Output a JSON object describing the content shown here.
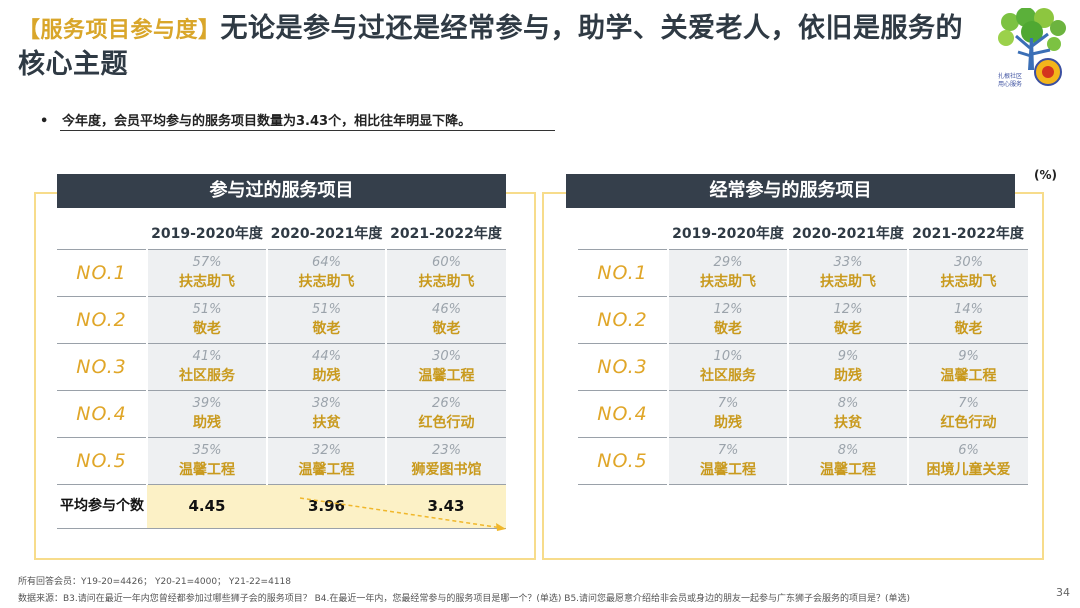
{
  "title": {
    "prefix": "【服务项目参与度】",
    "main": "无论是参与过还是经常参与，助学、关爱老人，依旧是服务的核心主题"
  },
  "bullet": "今年度，会员平均参与的服务项目数量为3.43个，相比往年明显下降。",
  "unit": "(%)",
  "colors": {
    "gold": "#e0a628",
    "dark_header": "#353f4b",
    "panel_border": "#f7dc8b",
    "avg_bg": "#fcf1c6"
  },
  "left_panel": {
    "title": "参与过的服务项目",
    "columns": [
      "2019-2020年度",
      "2020-2021年度",
      "2021-2022年度"
    ],
    "rows": [
      {
        "rank": "NO.1",
        "cells": [
          {
            "v": "57%",
            "n": "扶志助飞"
          },
          {
            "v": "64%",
            "n": "扶志助飞"
          },
          {
            "v": "60%",
            "n": "扶志助飞"
          }
        ]
      },
      {
        "rank": "NO.2",
        "cells": [
          {
            "v": "51%",
            "n": "敬老"
          },
          {
            "v": "51%",
            "n": "敬老"
          },
          {
            "v": "46%",
            "n": "敬老"
          }
        ]
      },
      {
        "rank": "NO.3",
        "cells": [
          {
            "v": "41%",
            "n": "社区服务"
          },
          {
            "v": "44%",
            "n": "助残"
          },
          {
            "v": "30%",
            "n": "温馨工程"
          }
        ]
      },
      {
        "rank": "NO.4",
        "cells": [
          {
            "v": "39%",
            "n": "助残"
          },
          {
            "v": "38%",
            "n": "扶贫"
          },
          {
            "v": "26%",
            "n": "红色行动"
          }
        ]
      },
      {
        "rank": "NO.5",
        "cells": [
          {
            "v": "35%",
            "n": "温馨工程"
          },
          {
            "v": "32%",
            "n": "温馨工程"
          },
          {
            "v": "23%",
            "n": "狮爱图书馆"
          }
        ]
      }
    ],
    "avg_label": "平均参与个数",
    "avg_values": [
      "4.45",
      "3.96",
      "3.43"
    ]
  },
  "right_panel": {
    "title": "经常参与的服务项目",
    "columns": [
      "2019-2020年度",
      "2020-2021年度",
      "2021-2022年度"
    ],
    "rows": [
      {
        "rank": "NO.1",
        "cells": [
          {
            "v": "29%",
            "n": "扶志助飞"
          },
          {
            "v": "33%",
            "n": "扶志助飞"
          },
          {
            "v": "30%",
            "n": "扶志助飞"
          }
        ]
      },
      {
        "rank": "NO.2",
        "cells": [
          {
            "v": "12%",
            "n": "敬老"
          },
          {
            "v": "12%",
            "n": "敬老"
          },
          {
            "v": "14%",
            "n": "敬老"
          }
        ]
      },
      {
        "rank": "NO.3",
        "cells": [
          {
            "v": "10%",
            "n": "社区服务"
          },
          {
            "v": "9%",
            "n": "助残"
          },
          {
            "v": "9%",
            "n": "温馨工程"
          }
        ]
      },
      {
        "rank": "NO.4",
        "cells": [
          {
            "v": "7%",
            "n": "助残"
          },
          {
            "v": "8%",
            "n": "扶贫"
          },
          {
            "v": "7%",
            "n": "红色行动"
          }
        ]
      },
      {
        "rank": "NO.5",
        "cells": [
          {
            "v": "7%",
            "n": "温馨工程"
          },
          {
            "v": "8%",
            "n": "温馨工程"
          },
          {
            "v": "6%",
            "n": "困境儿童关爱"
          }
        ]
      }
    ]
  },
  "footnotes": {
    "sample": "所有回答会员：Y19-20=4426；  Y20-21=4000；  Y21-22=4118",
    "source": "数据来源：B3.请问在最近一年内您曾经都参加过哪些狮子会的服务项目？ B4.在最近一年内，您最经常参与的服务项目是哪一个？(单选) B5.请问您最愿意介绍给非会员或身边的朋友一起参与广东狮子会服务的项目是？(单选)"
  },
  "page_number": "34",
  "logo": {
    "icon": "lions-tree-logo",
    "text": "扎根社区 用心服务"
  }
}
